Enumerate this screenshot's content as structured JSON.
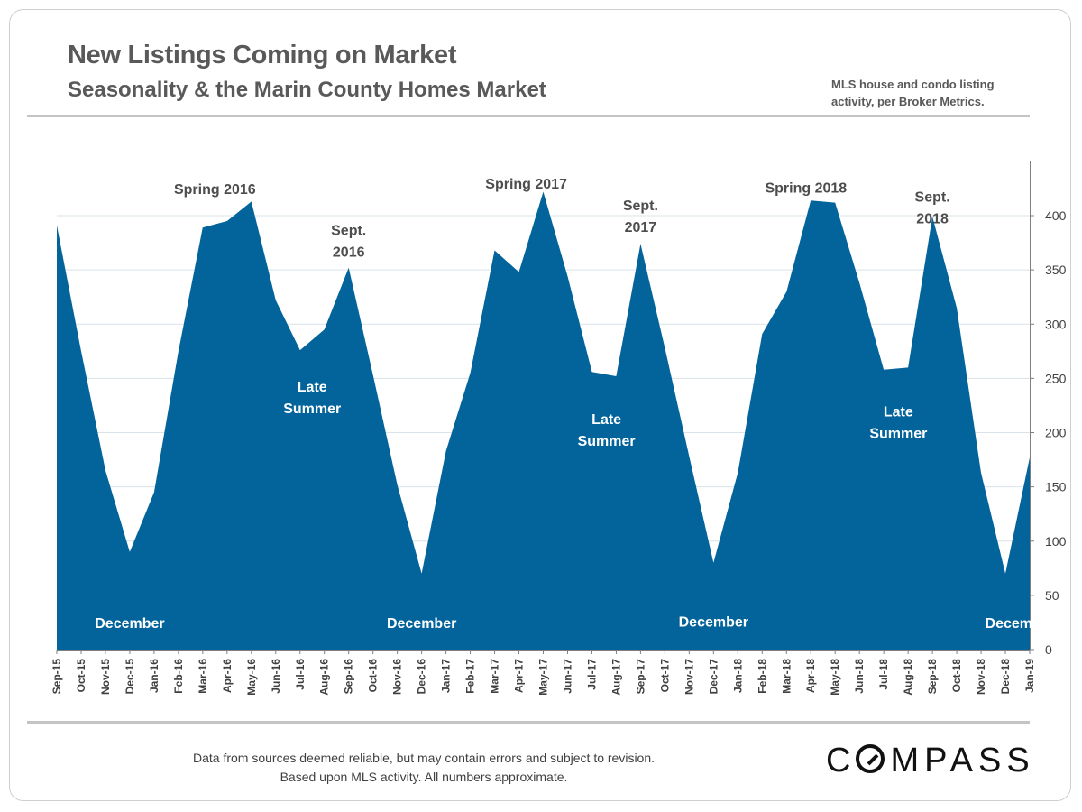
{
  "header": {
    "title": "New Listings Coming on Market",
    "subtitle": "Seasonality & the Marin County Homes Market",
    "note_line1": "MLS house and condo listing",
    "note_line2": "activity, per Broker Metrics."
  },
  "footer": {
    "line1": "Data from sources deemed reliable, but may contain errors and subject to revision.",
    "line2": "Based upon MLS activity. All numbers approximate.",
    "brand": "COMPASS"
  },
  "colors": {
    "area": "#03649c",
    "grid": "#d9e3e8",
    "axis": "#7f7f7f",
    "label_dark": "#4d4d4d",
    "label_light": "#ffffff"
  },
  "chart_data": {
    "type": "area",
    "title": "New Listings Coming on Market",
    "xlabel": "",
    "ylabel": "",
    "ylim": [
      0,
      450
    ],
    "yticks": [
      0,
      50,
      100,
      150,
      200,
      250,
      300,
      350,
      400
    ],
    "grid": true,
    "categories": [
      "Sep-15",
      "Oct-15",
      "Nov-15",
      "Dec-15",
      "Jan-16",
      "Feb-16",
      "Mar-16",
      "Apr-16",
      "May-16",
      "Jun-16",
      "Jul-16",
      "Aug-16",
      "Sep-16",
      "Oct-16",
      "Nov-16",
      "Dec-16",
      "Jan-17",
      "Feb-17",
      "Mar-17",
      "Apr-17",
      "May-17",
      "Jun-17",
      "Jul-17",
      "Aug-17",
      "Sep-17",
      "Oct-17",
      "Nov-17",
      "Dec-17",
      "Jan-18",
      "Feb-18",
      "Mar-18",
      "Apr-18",
      "May-18",
      "Jun-18",
      "Jul-18",
      "Aug-18",
      "Sep-18",
      "Oct-18",
      "Nov-18",
      "Dec-18",
      "Jan-19"
    ],
    "series": [
      {
        "name": "New Listings",
        "values": [
          391,
          275,
          165,
          90,
          145,
          275,
          389,
          395,
          413,
          322,
          276,
          295,
          352,
          253,
          152,
          70,
          183,
          255,
          368,
          348,
          422,
          344,
          256,
          252,
          374,
          278,
          178,
          80,
          163,
          291,
          330,
          414,
          412,
          338,
          258,
          260,
          399,
          315,
          163,
          70,
          177
        ]
      }
    ],
    "annotations": [
      {
        "lines": [
          "Spring 2016"
        ],
        "index": 6.5,
        "value": 420,
        "style": "dark"
      },
      {
        "lines": [
          "Sept.",
          "2016"
        ],
        "index": 12,
        "value": 382,
        "style": "dark"
      },
      {
        "lines": [
          "Late",
          "Summer"
        ],
        "index": 10.5,
        "value": 238,
        "style": "light"
      },
      {
        "lines": [
          "December"
        ],
        "index": 3,
        "value": 20,
        "style": "light"
      },
      {
        "lines": [
          "Spring 2017"
        ],
        "index": 19.3,
        "value": 425,
        "style": "dark"
      },
      {
        "lines": [
          "Sept.",
          "2017"
        ],
        "index": 24,
        "value": 405,
        "style": "dark"
      },
      {
        "lines": [
          "Late",
          "Summer"
        ],
        "index": 22.6,
        "value": 208,
        "style": "light"
      },
      {
        "lines": [
          "December"
        ],
        "index": 15,
        "value": 20,
        "style": "light"
      },
      {
        "lines": [
          "Spring 2018"
        ],
        "index": 30.8,
        "value": 421,
        "style": "dark"
      },
      {
        "lines": [
          "Sept.",
          "2018"
        ],
        "index": 36,
        "value": 413,
        "style": "dark"
      },
      {
        "lines": [
          "Late",
          "Summer"
        ],
        "index": 34.6,
        "value": 215,
        "style": "light"
      },
      {
        "lines": [
          "December"
        ],
        "index": 27,
        "value": 21,
        "style": "light"
      },
      {
        "lines": [
          "December"
        ],
        "index": 39.6,
        "value": 20,
        "style": "light"
      }
    ]
  }
}
